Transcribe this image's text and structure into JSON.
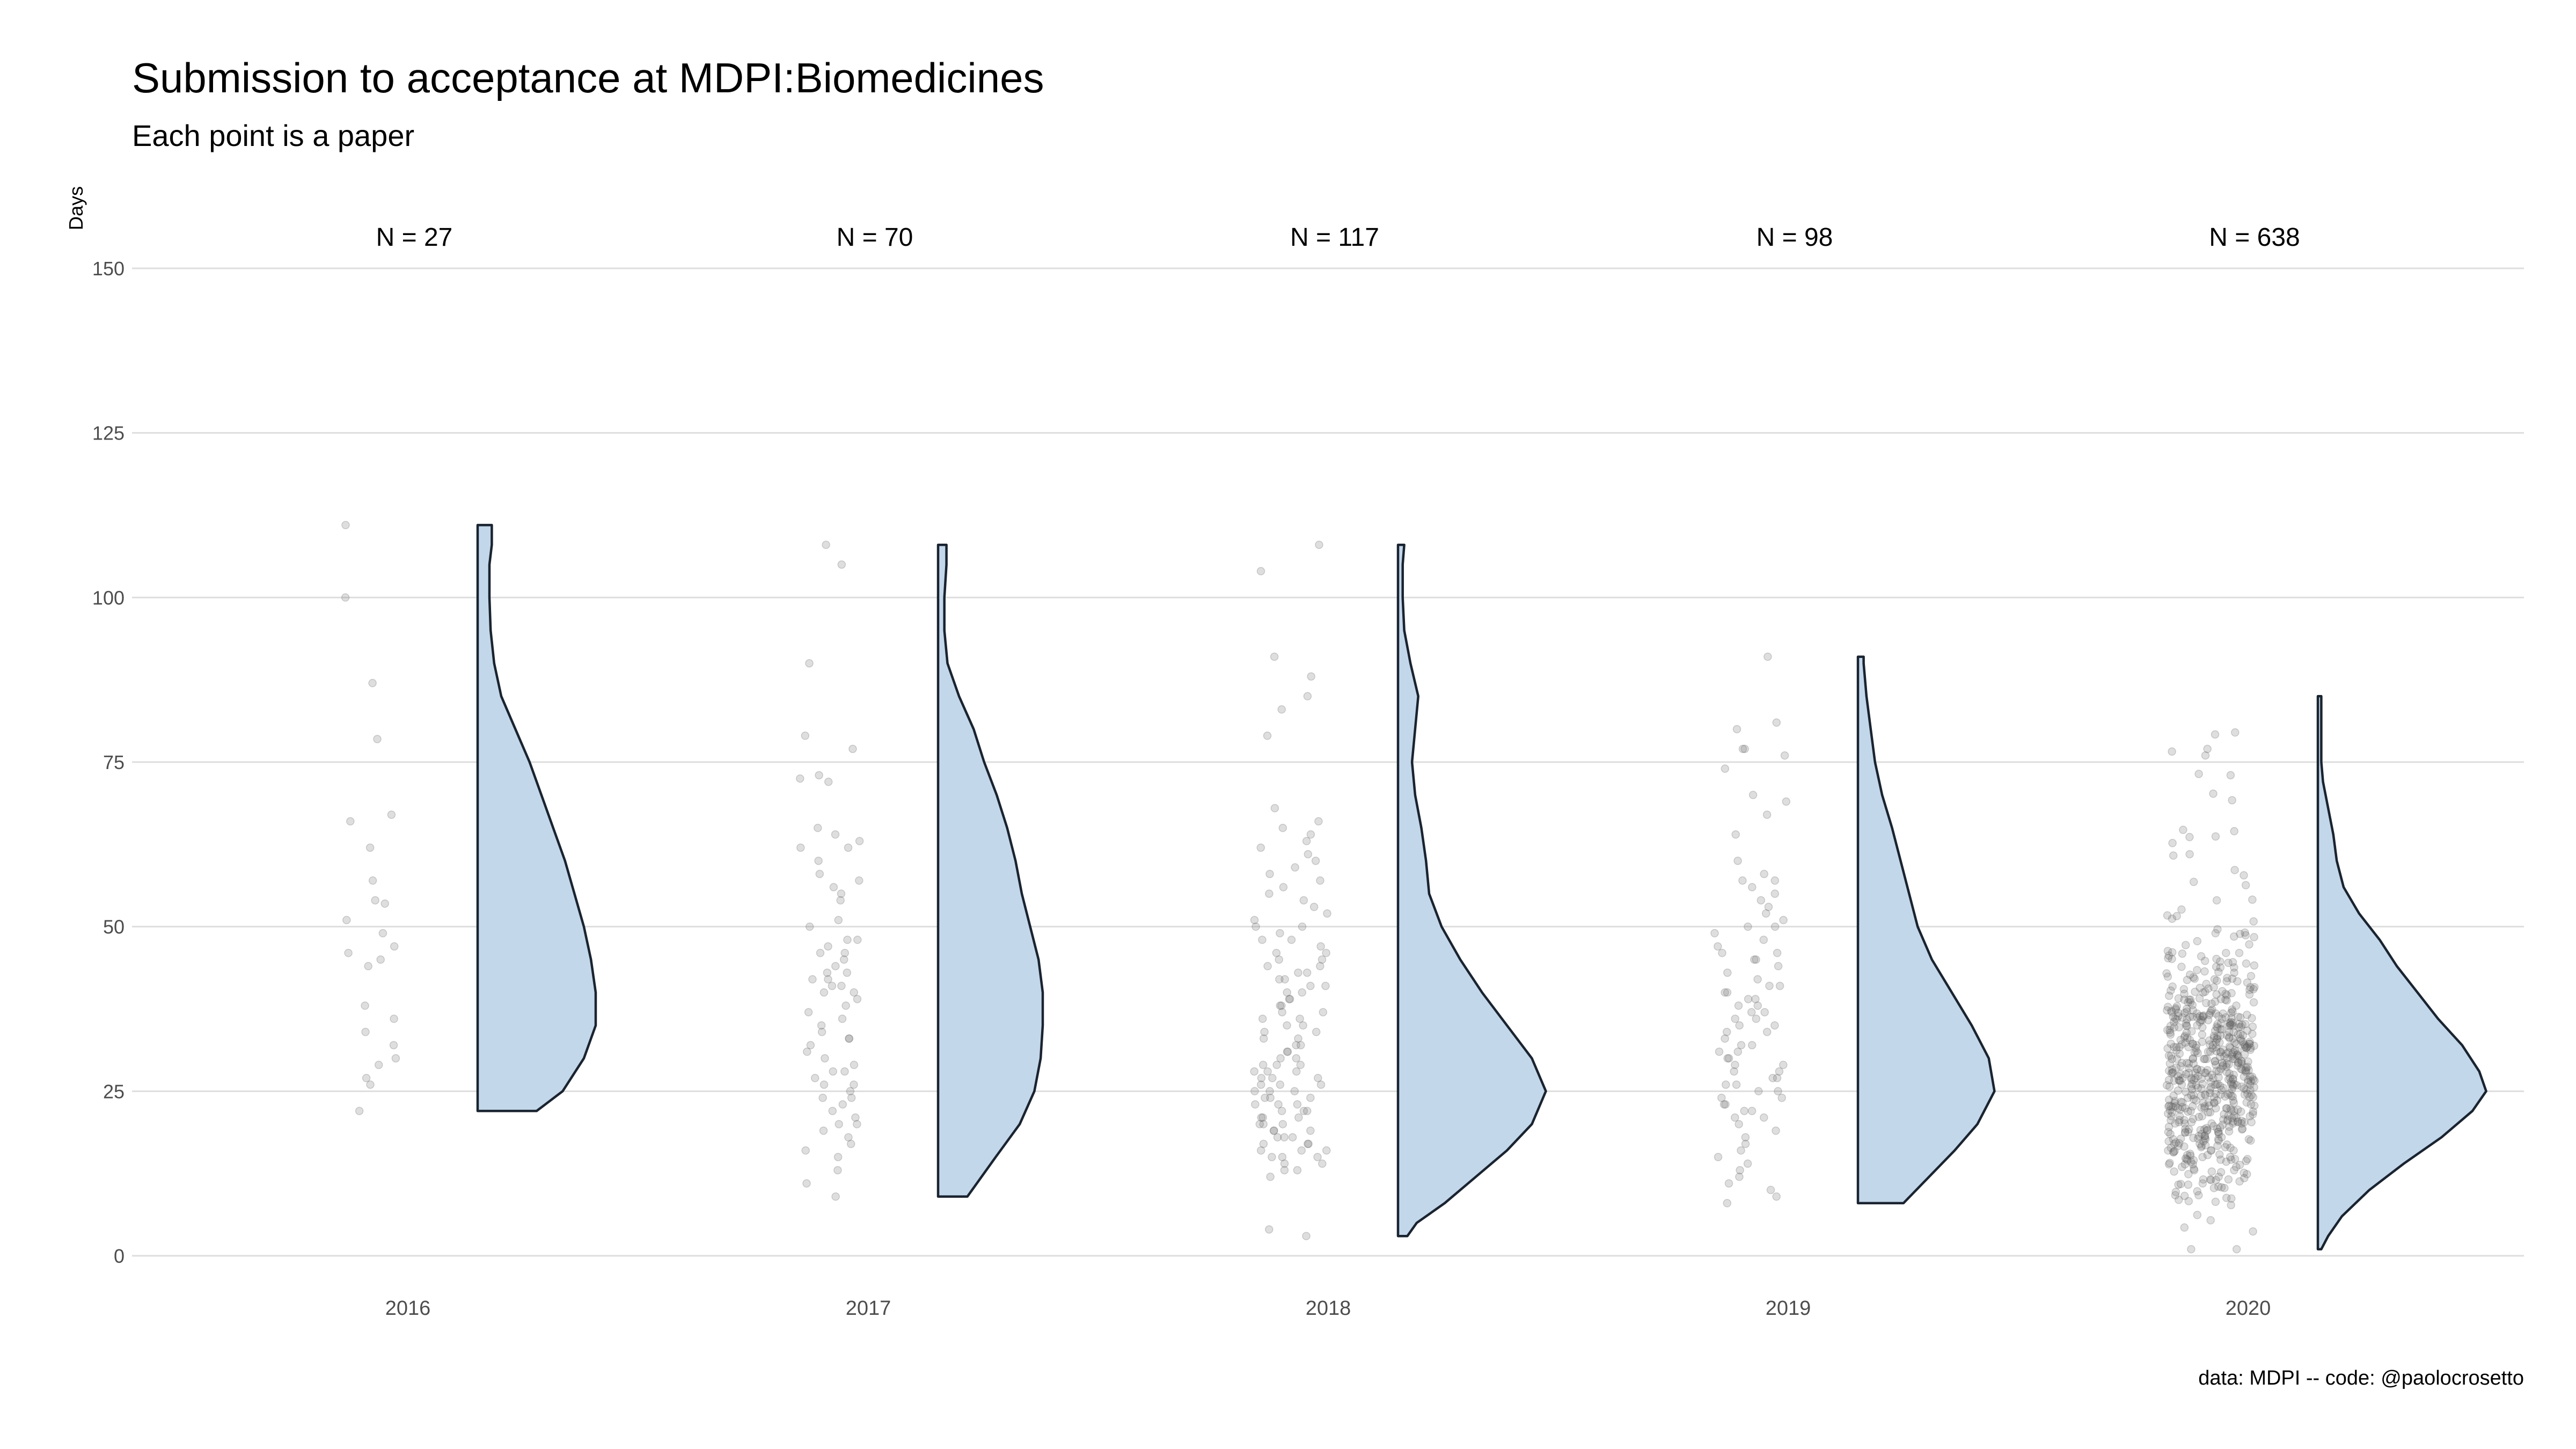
{
  "title": "Submission to acceptance at MDPI:Biomedicines",
  "subtitle": "Each point is a paper",
  "caption": "data: MDPI -- code: @paolocrosetto",
  "colors": {
    "violin_fill": "#c3d7ea",
    "violin_stroke": "#1a2330",
    "points": "#6b6b6b",
    "grid": "#dedede"
  },
  "chart_data": {
    "type": "scatter",
    "ylabel": "Days",
    "xlabel": "",
    "ylim": [
      0,
      150
    ],
    "yticks": [
      0,
      25,
      50,
      75,
      100,
      125,
      150
    ],
    "grid": true,
    "categories": [
      "2016",
      "2017",
      "2018",
      "2019",
      "2020"
    ],
    "groups": [
      {
        "year": "2016",
        "n_label": "N = 27",
        "n": 27,
        "min": 22,
        "max": 111,
        "density": [
          [
            22,
            0.5
          ],
          [
            25,
            0.72
          ],
          [
            30,
            0.9
          ],
          [
            35,
            1.0
          ],
          [
            40,
            1.0
          ],
          [
            45,
            0.96
          ],
          [
            50,
            0.9
          ],
          [
            55,
            0.82
          ],
          [
            60,
            0.74
          ],
          [
            65,
            0.64
          ],
          [
            70,
            0.54
          ],
          [
            75,
            0.44
          ],
          [
            80,
            0.32
          ],
          [
            85,
            0.2
          ],
          [
            90,
            0.14
          ],
          [
            95,
            0.11
          ],
          [
            100,
            0.1
          ],
          [
            105,
            0.1
          ],
          [
            108,
            0.12
          ],
          [
            111,
            0.12
          ]
        ],
        "points": [
          111,
          100,
          87,
          78.5,
          67,
          66,
          62,
          57,
          54,
          53.5,
          51,
          49,
          47,
          46,
          45,
          44,
          38,
          36,
          34,
          32,
          30,
          29,
          27,
          26,
          22
        ]
      },
      {
        "year": "2017",
        "n_label": "N = 70",
        "n": 70,
        "min": 9,
        "max": 108,
        "density": [
          [
            9,
            0.28
          ],
          [
            15,
            0.55
          ],
          [
            20,
            0.78
          ],
          [
            25,
            0.92
          ],
          [
            30,
            0.98
          ],
          [
            35,
            1.0
          ],
          [
            40,
            1.0
          ],
          [
            45,
            0.96
          ],
          [
            50,
            0.88
          ],
          [
            55,
            0.8
          ],
          [
            60,
            0.74
          ],
          [
            65,
            0.66
          ],
          [
            70,
            0.56
          ],
          [
            75,
            0.44
          ],
          [
            80,
            0.34
          ],
          [
            85,
            0.2
          ],
          [
            90,
            0.09
          ],
          [
            95,
            0.06
          ],
          [
            100,
            0.06
          ],
          [
            105,
            0.08
          ],
          [
            108,
            0.08
          ]
        ],
        "points": [
          108,
          105,
          90,
          79,
          77,
          73,
          72.5,
          72,
          65,
          64,
          63,
          62,
          62,
          60,
          58,
          57,
          56,
          55,
          54,
          51,
          50,
          48,
          48,
          47,
          46,
          46,
          45,
          44,
          43,
          43,
          42,
          42,
          41,
          41,
          40,
          40,
          39,
          38,
          37,
          36,
          35,
          34,
          33,
          33,
          32,
          31,
          30,
          29,
          28,
          28,
          27,
          26,
          26,
          25,
          24,
          24,
          23,
          22,
          21,
          20,
          20,
          19,
          18,
          17,
          16,
          15,
          13,
          11,
          9
        ]
      },
      {
        "year": "2018",
        "n_label": "N = 117",
        "n": 117,
        "min": 3,
        "max": 108,
        "density": [
          [
            3,
            0.06
          ],
          [
            5,
            0.12
          ],
          [
            8,
            0.3
          ],
          [
            12,
            0.5
          ],
          [
            16,
            0.7
          ],
          [
            20,
            0.86
          ],
          [
            25,
            0.95
          ],
          [
            30,
            0.86
          ],
          [
            35,
            0.7
          ],
          [
            40,
            0.54
          ],
          [
            45,
            0.4
          ],
          [
            50,
            0.28
          ],
          [
            55,
            0.2
          ],
          [
            60,
            0.18
          ],
          [
            65,
            0.15
          ],
          [
            70,
            0.11
          ],
          [
            75,
            0.09
          ],
          [
            80,
            0.11
          ],
          [
            85,
            0.13
          ],
          [
            90,
            0.08
          ],
          [
            95,
            0.04
          ],
          [
            100,
            0.03
          ],
          [
            105,
            0.03
          ],
          [
            108,
            0.04
          ]
        ],
        "points": [
          108,
          104,
          91,
          88,
          85,
          83,
          79,
          68,
          66,
          65,
          64,
          63,
          62,
          61,
          60,
          59,
          58,
          57,
          56,
          55,
          54,
          53,
          52,
          51,
          50,
          50,
          49,
          48,
          48,
          47,
          46,
          46,
          45,
          45,
          44,
          44,
          43,
          43,
          42,
          42,
          41,
          41,
          40,
          40,
          39,
          39,
          38,
          38,
          37,
          37,
          36,
          36,
          35,
          35,
          34,
          34,
          33,
          33,
          32,
          32,
          31,
          31,
          30,
          30,
          29,
          29,
          29,
          28,
          28,
          28,
          27,
          27,
          27,
          26,
          26,
          26,
          25,
          25,
          25,
          24,
          24,
          24,
          23,
          23,
          23,
          22,
          22,
          22,
          21,
          21,
          21,
          20,
          20,
          20,
          19,
          19,
          19,
          18,
          18,
          18,
          17,
          17,
          17,
          16,
          16,
          16,
          15,
          15,
          15,
          14,
          14,
          13,
          13,
          12,
          4,
          3
        ]
      },
      {
        "year": "2019",
        "n_label": "N = 98",
        "n": 98,
        "min": 8,
        "max": 91,
        "density": [
          [
            8,
            0.32
          ],
          [
            12,
            0.5
          ],
          [
            16,
            0.68
          ],
          [
            20,
            0.84
          ],
          [
            25,
            0.96
          ],
          [
            30,
            0.92
          ],
          [
            35,
            0.8
          ],
          [
            40,
            0.66
          ],
          [
            45,
            0.52
          ],
          [
            50,
            0.42
          ],
          [
            55,
            0.36
          ],
          [
            60,
            0.3
          ],
          [
            65,
            0.24
          ],
          [
            70,
            0.17
          ],
          [
            75,
            0.12
          ],
          [
            80,
            0.09
          ],
          [
            85,
            0.06
          ],
          [
            90,
            0.04
          ],
          [
            91,
            0.04
          ]
        ],
        "points": [
          91,
          81,
          80,
          77,
          77,
          76,
          74,
          70,
          69,
          67,
          64,
          60,
          58,
          57,
          57,
          56,
          55,
          54,
          53,
          52,
          51,
          50,
          50,
          49,
          48,
          47,
          46,
          46,
          45,
          45,
          44,
          43,
          42,
          41,
          41,
          40,
          40,
          39,
          39,
          38,
          38,
          37,
          37,
          36,
          36,
          35,
          35,
          34,
          34,
          33,
          32,
          32,
          31,
          31,
          30,
          30,
          29,
          29,
          28,
          28,
          27,
          27,
          26,
          26,
          25,
          25,
          24,
          24,
          23,
          23,
          22,
          22,
          21,
          21,
          20,
          19,
          18,
          17,
          16,
          15,
          14,
          13,
          12,
          11,
          10,
          9,
          8
        ]
      },
      {
        "year": "2020",
        "n_label": "N = 638",
        "n": 638,
        "min": 1,
        "max": 85,
        "density": [
          [
            1,
            0.02
          ],
          [
            3,
            0.06
          ],
          [
            6,
            0.14
          ],
          [
            10,
            0.3
          ],
          [
            14,
            0.5
          ],
          [
            18,
            0.72
          ],
          [
            22,
            0.9
          ],
          [
            25,
            0.98
          ],
          [
            28,
            0.94
          ],
          [
            32,
            0.84
          ],
          [
            36,
            0.7
          ],
          [
            40,
            0.58
          ],
          [
            44,
            0.46
          ],
          [
            48,
            0.36
          ],
          [
            52,
            0.24
          ],
          [
            56,
            0.15
          ],
          [
            60,
            0.11
          ],
          [
            64,
            0.09
          ],
          [
            68,
            0.06
          ],
          [
            72,
            0.03
          ],
          [
            75,
            0.02
          ],
          [
            80,
            0.02
          ],
          [
            85,
            0.02
          ]
        ],
        "points": []
      }
    ]
  }
}
